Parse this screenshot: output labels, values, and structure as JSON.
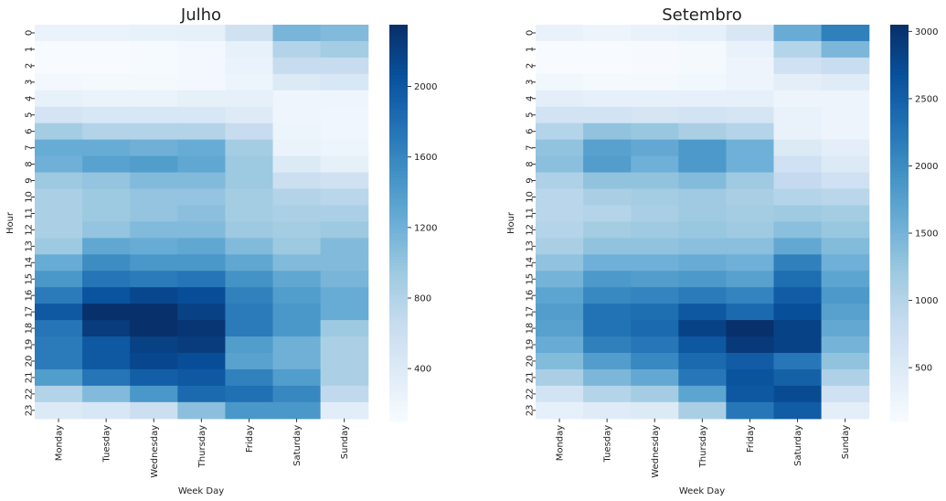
{
  "chart_data": [
    {
      "type": "heatmap",
      "title": "Julho",
      "xlabel": "Week Day",
      "ylabel": "Hour",
      "categories": [
        "Monday",
        "Tuesday",
        "Wednesday",
        "Thursday",
        "Friday",
        "Saturday",
        "Sunday"
      ],
      "hours": [
        "0",
        "1",
        "2",
        "3",
        "4",
        "5",
        "6",
        "7",
        "8",
        "9",
        "10",
        "11",
        "12",
        "13",
        "14",
        "15",
        "16",
        "17",
        "18",
        "19",
        "20",
        "21",
        "22",
        "23"
      ],
      "colormap": "Blues",
      "vmin": 100,
      "vmax": 2350,
      "colorbar_ticks": [
        "400",
        "800",
        "1200",
        "1600",
        "2000"
      ],
      "colorbar_tick_values": [
        400,
        800,
        1200,
        1600,
        2000
      ],
      "values": [
        [
          250,
          250,
          280,
          300,
          550,
          1150,
          1100
        ],
        [
          100,
          100,
          120,
          150,
          280,
          800,
          900
        ],
        [
          100,
          100,
          120,
          150,
          250,
          650,
          650
        ],
        [
          150,
          130,
          130,
          150,
          220,
          400,
          450
        ],
        [
          280,
          250,
          250,
          300,
          300,
          200,
          200
        ],
        [
          500,
          450,
          450,
          450,
          380,
          200,
          180
        ],
        [
          900,
          800,
          800,
          800,
          650,
          220,
          180
        ],
        [
          1250,
          1250,
          1200,
          1250,
          900,
          250,
          220
        ],
        [
          1200,
          1350,
          1400,
          1300,
          950,
          400,
          300
        ],
        [
          950,
          1000,
          1100,
          1100,
          950,
          600,
          550
        ],
        [
          850,
          950,
          1000,
          1000,
          900,
          800,
          750
        ],
        [
          850,
          950,
          1000,
          1050,
          900,
          850,
          850
        ],
        [
          850,
          1000,
          1100,
          1100,
          950,
          900,
          950
        ],
        [
          950,
          1300,
          1250,
          1300,
          1100,
          950,
          1100
        ],
        [
          1250,
          1550,
          1450,
          1450,
          1300,
          1100,
          1100
        ],
        [
          1450,
          1750,
          1700,
          1750,
          1500,
          1300,
          1150
        ],
        [
          1700,
          2050,
          2150,
          2100,
          1650,
          1400,
          1250
        ],
        [
          2000,
          2350,
          2350,
          2200,
          1700,
          1450,
          1250
        ],
        [
          1750,
          2250,
          2350,
          2300,
          1700,
          1450,
          950
        ],
        [
          1700,
          2000,
          2200,
          2250,
          1400,
          1200,
          850
        ],
        [
          1700,
          2000,
          2150,
          2100,
          1350,
          1200,
          850
        ],
        [
          1400,
          1750,
          1950,
          2000,
          1650,
          1400,
          850
        ],
        [
          800,
          1100,
          1450,
          1850,
          1800,
          1600,
          700
        ],
        [
          400,
          450,
          600,
          1050,
          1450,
          1450,
          350
        ]
      ]
    },
    {
      "type": "heatmap",
      "title": "Setembro",
      "xlabel": "Week Day",
      "ylabel": "Hour",
      "categories": [
        "Monday",
        "Tuesday",
        "Wednesday",
        "Thursday",
        "Friday",
        "Saturday",
        "Sunday"
      ],
      "hours": [
        "0",
        "1",
        "2",
        "3",
        "4",
        "5",
        "6",
        "7",
        "8",
        "9",
        "10",
        "11",
        "12",
        "13",
        "14",
        "15",
        "16",
        "17",
        "18",
        "19",
        "20",
        "21",
        "22",
        "23"
      ],
      "colormap": "Blues",
      "vmin": 100,
      "vmax": 3050,
      "colorbar_ticks": [
        "500",
        "1000",
        "1500",
        "2000",
        "2500",
        "3000"
      ],
      "colorbar_tick_values": [
        500,
        1000,
        1500,
        2000,
        2500,
        3000
      ],
      "values": [
        [
          300,
          250,
          300,
          350,
          550,
          1600,
          2150
        ],
        [
          100,
          100,
          120,
          150,
          300,
          1000,
          1450
        ],
        [
          100,
          100,
          120,
          150,
          250,
          700,
          800
        ],
        [
          200,
          150,
          150,
          200,
          250,
          400,
          450
        ],
        [
          400,
          350,
          350,
          350,
          350,
          250,
          250
        ],
        [
          650,
          650,
          600,
          650,
          600,
          300,
          250
        ],
        [
          1000,
          1300,
          1250,
          1100,
          1000,
          300,
          250
        ],
        [
          1300,
          1750,
          1650,
          1850,
          1550,
          500,
          400
        ],
        [
          1350,
          1800,
          1550,
          1850,
          1550,
          700,
          500
        ],
        [
          1050,
          1300,
          1300,
          1400,
          1200,
          850,
          700
        ],
        [
          950,
          1100,
          1150,
          1200,
          1100,
          1000,
          950
        ],
        [
          950,
          1000,
          1100,
          1200,
          1150,
          1200,
          1150
        ],
        [
          1000,
          1150,
          1200,
          1250,
          1200,
          1350,
          1250
        ],
        [
          1100,
          1300,
          1300,
          1350,
          1350,
          1650,
          1400
        ],
        [
          1300,
          1550,
          1550,
          1600,
          1550,
          2150,
          1550
        ],
        [
          1500,
          1850,
          1800,
          1850,
          1750,
          2350,
          1700
        ],
        [
          1700,
          2050,
          2100,
          2200,
          2100,
          2550,
          1850
        ],
        [
          1800,
          2300,
          2350,
          2600,
          2400,
          2700,
          1750
        ],
        [
          1750,
          2300,
          2400,
          2850,
          3050,
          2850,
          1650
        ],
        [
          1600,
          2150,
          2250,
          2600,
          2950,
          2850,
          1500
        ],
        [
          1400,
          1800,
          2050,
          2400,
          2550,
          2250,
          1300
        ],
        [
          1100,
          1450,
          1650,
          2250,
          2650,
          2500,
          1050
        ],
        [
          650,
          1000,
          1150,
          1700,
          2600,
          2750,
          700
        ],
        [
          350,
          450,
          500,
          1100,
          2250,
          2550,
          400
        ]
      ]
    }
  ]
}
